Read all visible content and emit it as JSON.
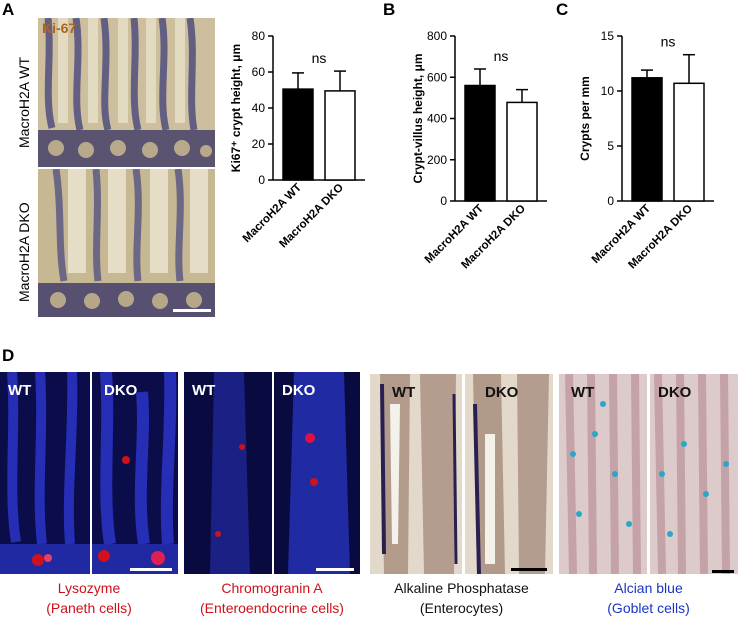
{
  "panels": {
    "A": "A",
    "B": "B",
    "C": "C",
    "D": "D"
  },
  "panel_a_images": {
    "stain": "Ki-67",
    "row1_label": "MacroH2A WT",
    "row2_label": "MacroH2A DKO",
    "tissue_color": "#c9b896",
    "nuclei_color": "#3f3f7a"
  },
  "colors": {
    "wt_bar": "#000000",
    "dko_bar": "#ffffff",
    "fluor_bg": "#0b0d4a",
    "lysozyme_red": "#d0101a",
    "alcian_blue": "#1a35c4"
  },
  "chart_data": [
    {
      "type": "bar",
      "categories": [
        "MacroH2A WT",
        "MacroH2A DKO"
      ],
      "values": [
        50.5,
        49.5
      ],
      "errors": [
        9,
        11
      ],
      "ylabel": "Ki67⁺ crypt height, μm",
      "ylim": [
        0,
        80
      ],
      "yticks": [
        0,
        20,
        40,
        60,
        80
      ],
      "annotation": "ns",
      "grid": false
    },
    {
      "type": "bar",
      "categories": [
        "MacroH2A WT",
        "MacroH2A DKO"
      ],
      "values": [
        560,
        478
      ],
      "errors": [
        80,
        62
      ],
      "ylabel": "Crypt-villus height, μm",
      "ylim": [
        0,
        800
      ],
      "yticks": [
        0,
        200,
        400,
        600,
        800
      ],
      "annotation": "ns",
      "grid": false
    },
    {
      "type": "bar",
      "categories": [
        "MacroH2A WT",
        "MacroH2A DKO"
      ],
      "values": [
        11.2,
        10.7
      ],
      "errors": [
        0.7,
        2.6
      ],
      "ylabel": "Crypts per mm",
      "ylim": [
        0,
        15
      ],
      "yticks": [
        0,
        5,
        10,
        15
      ],
      "annotation": "ns",
      "grid": false
    }
  ],
  "panel_d": {
    "groups": [
      {
        "left_tag": "WT",
        "right_tag": "DKO",
        "caption_line1": "Lysozyme",
        "caption_line2": "(Paneth cells)",
        "caption_color": "#d0101a"
      },
      {
        "left_tag": "WT",
        "right_tag": "DKO",
        "caption_line1": "Chromogranin A",
        "caption_line2": "(Enteroendocrine cells)",
        "caption_color": "#d0101a"
      },
      {
        "left_tag": "WT",
        "right_tag": "DKO",
        "caption_line1": "Alkaline Phosphatase",
        "caption_line2": "(Enterocytes)",
        "caption_color": "#111111"
      },
      {
        "left_tag": "WT",
        "right_tag": "DKO",
        "caption_line1": "Alcian blue",
        "caption_line2": "(Goblet cells)",
        "caption_color": "#1a35c4"
      }
    ]
  }
}
